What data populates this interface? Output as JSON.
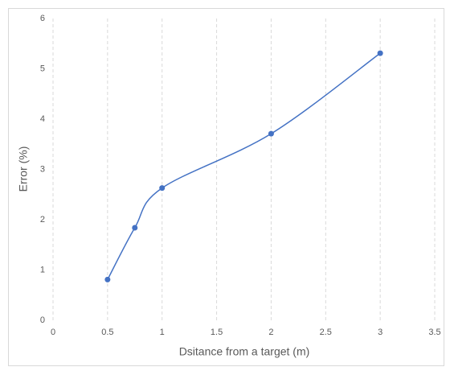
{
  "chart_data": {
    "type": "line",
    "smooth": true,
    "markers": true,
    "x": [
      0.5,
      0.75,
      1,
      2,
      3
    ],
    "series": [
      {
        "color": "#4472c4",
        "values": [
          0.81,
          1.84,
          2.63,
          3.71,
          5.31
        ]
      }
    ],
    "xlabel": "Dsitance from a target (m)",
    "ylabel": "Error (%)",
    "xlim": [
      0,
      3.5
    ],
    "xticks": [
      0,
      0.5,
      1,
      1.5,
      2,
      2.5,
      3,
      3.5
    ],
    "ylim": [
      0,
      6
    ],
    "yticks": [
      0,
      1,
      2,
      3,
      4,
      5,
      6
    ],
    "xgrid": true,
    "ygrid": false
  }
}
